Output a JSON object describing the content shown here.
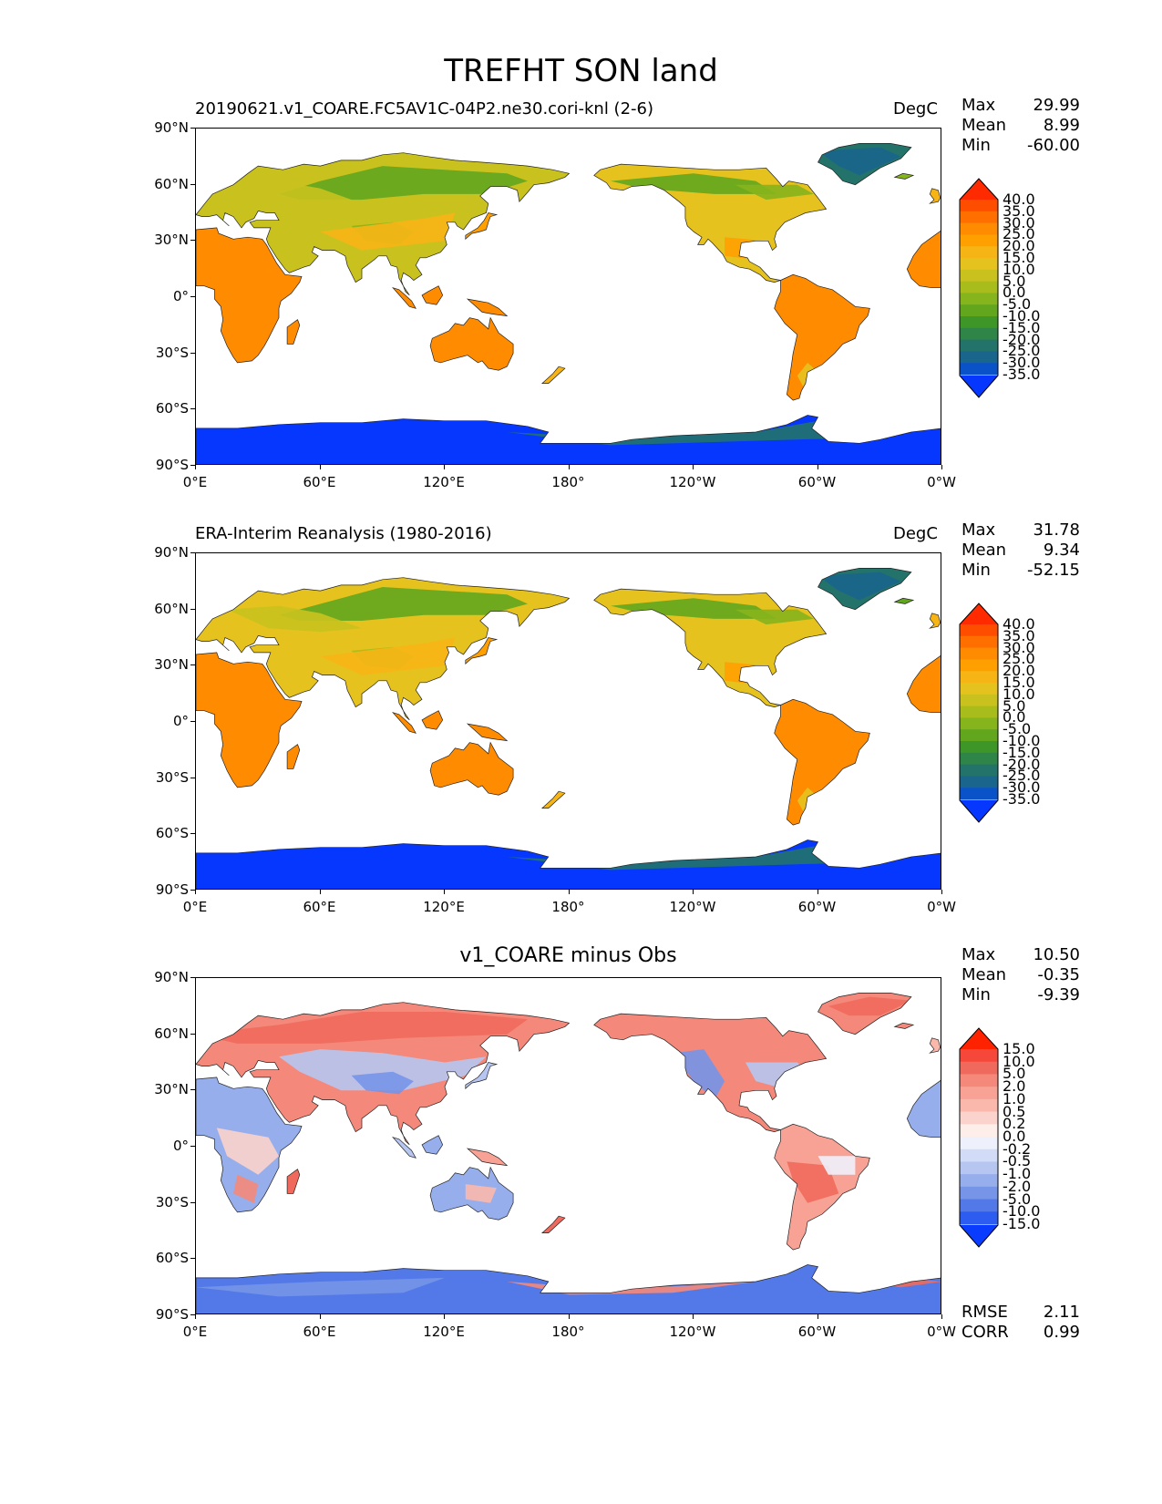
{
  "title": "TREFHT SON land",
  "lat_ticks": [
    "90°N",
    "60°N",
    "30°N",
    "0°",
    "30°S",
    "60°S",
    "90°S"
  ],
  "lon_ticks": [
    "0°E",
    "60°E",
    "120°E",
    "180°",
    "120°W",
    "60°W",
    "0°W"
  ],
  "chart_data": [
    {
      "type": "heatmap",
      "title_left": "20190621.v1_COARE.FC5AV1C-04P2.ne30.cori-knl (2-6)",
      "title_right": "DegC",
      "title_center": "",
      "stats": [
        {
          "label": "Max",
          "value": "29.99"
        },
        {
          "label": "Mean",
          "value": "8.99"
        },
        {
          "label": "Min",
          "value": "-60.00"
        }
      ],
      "footer_stats": [],
      "colorbar_levels": [
        "40.0",
        "35.0",
        "30.0",
        "25.0",
        "20.0",
        "15.0",
        "10.0",
        "5.0",
        "0.0",
        "-5.0",
        "-10.0",
        "-15.0",
        "-20.0",
        "-25.0",
        "-30.0",
        "-35.0"
      ],
      "colorbar_colors": [
        "#ff2a00",
        "#ff4d00",
        "#ff6f00",
        "#ff8c00",
        "#ffa000",
        "#f7b515",
        "#e6c21f",
        "#c9c21e",
        "#a8bd1c",
        "#86b41c",
        "#62a61e",
        "#3f9628",
        "#2f8448",
        "#24736b",
        "#1a658c",
        "#0a52c8",
        "#0637ff"
      ],
      "xlim": [
        0,
        360
      ],
      "ylim": [
        -90,
        90
      ],
      "variant": "model"
    },
    {
      "type": "heatmap",
      "title_left": "ERA-Interim Reanalysis (1980-2016)",
      "title_right": "DegC",
      "title_center": "",
      "stats": [
        {
          "label": "Max",
          "value": "31.78"
        },
        {
          "label": "Mean",
          "value": "9.34"
        },
        {
          "label": "Min",
          "value": "-52.15"
        }
      ],
      "footer_stats": [],
      "colorbar_levels": [
        "40.0",
        "35.0",
        "30.0",
        "25.0",
        "20.0",
        "15.0",
        "10.0",
        "5.0",
        "0.0",
        "-5.0",
        "-10.0",
        "-15.0",
        "-20.0",
        "-25.0",
        "-30.0",
        "-35.0"
      ],
      "colorbar_colors": [
        "#ff2a00",
        "#ff4d00",
        "#ff6f00",
        "#ff8c00",
        "#ffa000",
        "#f7b515",
        "#e6c21f",
        "#c9c21e",
        "#a8bd1c",
        "#86b41c",
        "#62a61e",
        "#3f9628",
        "#2f8448",
        "#24736b",
        "#1a658c",
        "#0a52c8",
        "#0637ff"
      ],
      "xlim": [
        0,
        360
      ],
      "ylim": [
        -90,
        90
      ],
      "variant": "obs"
    },
    {
      "type": "heatmap",
      "title_left": "",
      "title_right": "",
      "title_center": "v1_COARE minus Obs",
      "stats": [
        {
          "label": "Max",
          "value": "10.50"
        },
        {
          "label": "Mean",
          "value": "-0.35"
        },
        {
          "label": "Min",
          "value": "-9.39"
        }
      ],
      "footer_stats": [
        {
          "label": "RMSE",
          "value": "2.11"
        },
        {
          "label": "CORR",
          "value": "0.99"
        }
      ],
      "colorbar_levels": [
        "15.0",
        "10.0",
        "5.0",
        "2.0",
        "1.0",
        "0.5",
        "0.2",
        "0.0",
        "-0.2",
        "-0.5",
        "-1.0",
        "-2.0",
        "-5.0",
        "-10.0",
        "-15.0"
      ],
      "colorbar_colors": [
        "#ff2200",
        "#f5473a",
        "#ef6a5c",
        "#f4887a",
        "#f8a295",
        "#fab8ad",
        "#fcd3cc",
        "#fdeeea",
        "#eef1fb",
        "#d2dcf6",
        "#b6c6f1",
        "#97aeec",
        "#7695e8",
        "#5379e8",
        "#2c5cf0",
        "#0a3cff"
      ],
      "xlim": [
        0,
        360
      ],
      "ylim": [
        -90,
        90
      ],
      "variant": "diff"
    }
  ]
}
